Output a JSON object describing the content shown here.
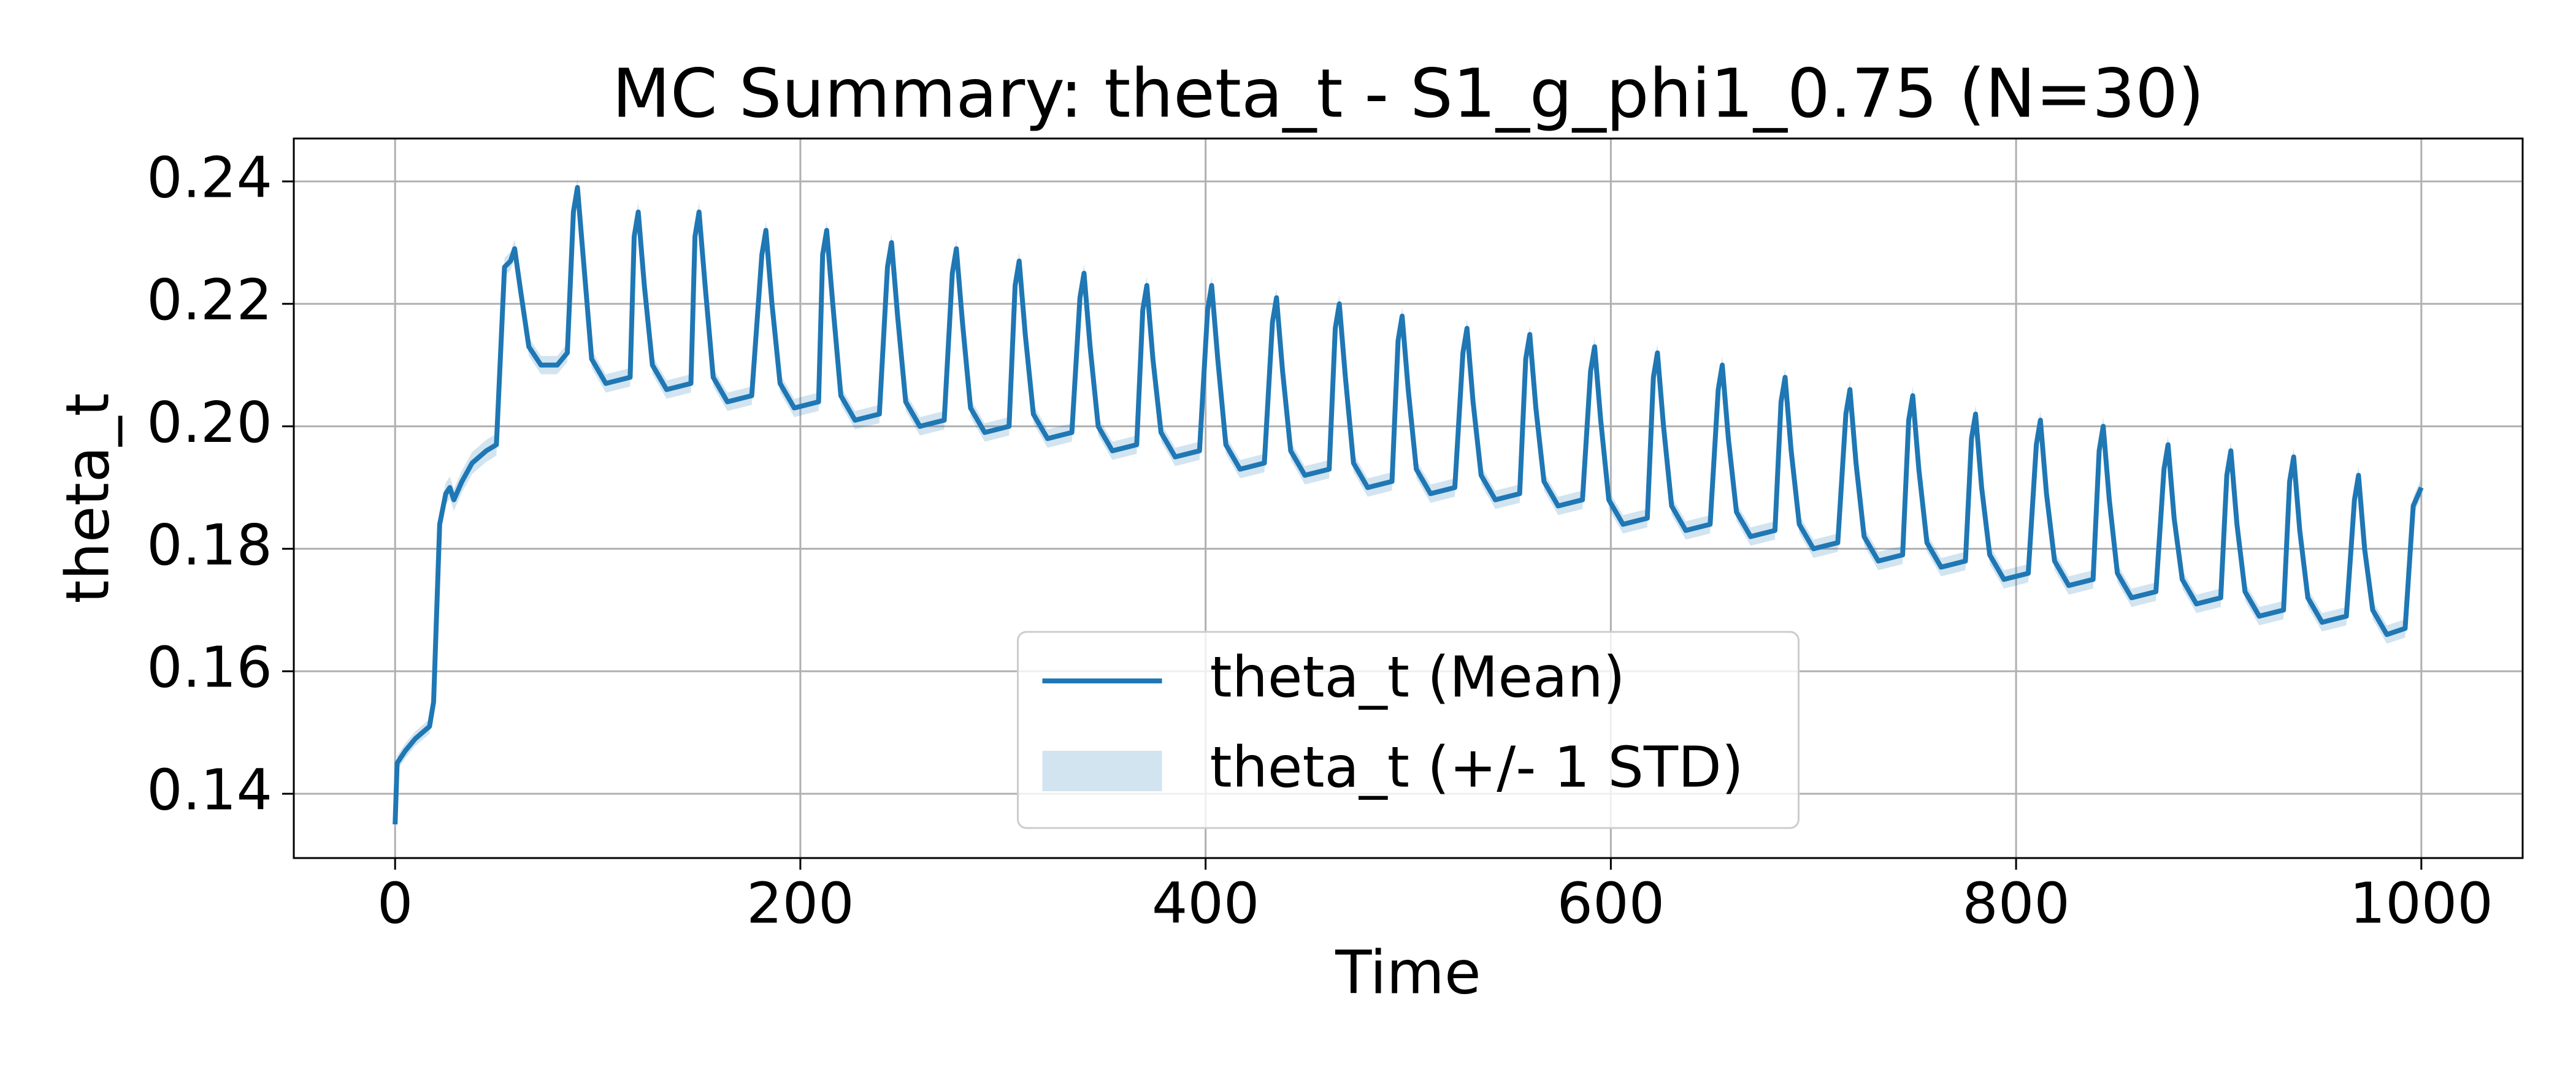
{
  "chart_data": {
    "type": "line",
    "title": "MC Summary: theta_t - S1_g_phi1_0.75 (N=30)",
    "x_label": "Time",
    "y_label": "theta_t",
    "xlim": [
      -50,
      1050
    ],
    "ylim": [
      0.1295,
      0.247
    ],
    "xticks": [
      0,
      200,
      400,
      600,
      800,
      1000
    ],
    "yticks": [
      0.14,
      0.16,
      0.18,
      {
        "value": 0.2,
        "label": "0.20"
      },
      0.22,
      0.24
    ],
    "grid": true,
    "legend_loc": "lower center",
    "x": [
      0,
      1,
      5,
      10,
      17,
      19,
      22,
      25,
      27,
      29,
      33,
      38,
      45,
      50,
      54,
      57,
      59,
      62,
      66,
      72,
      80,
      85,
      88,
      90,
      93,
      97,
      104,
      116,
      118,
      120,
      123,
      127,
      134,
      146,
      148,
      150,
      153,
      157,
      164,
      176,
      181,
      183,
      186,
      190,
      197,
      209,
      211,
      213,
      216,
      220,
      227,
      239,
      243,
      245,
      248,
      252,
      259,
      271,
      275,
      277,
      280,
      284,
      291,
      303,
      306,
      308,
      311,
      315,
      322,
      334,
      338,
      340,
      343,
      347,
      354,
      366,
      369,
      371,
      374,
      378,
      385,
      397,
      401,
      403,
      406,
      410,
      417,
      429,
      433,
      435,
      438,
      442,
      449,
      461,
      464,
      466,
      469,
      473,
      480,
      492,
      495,
      497,
      500,
      504,
      511,
      523,
      527,
      529,
      532,
      536,
      543,
      555,
      558,
      560,
      563,
      567,
      574,
      586,
      590,
      592,
      595,
      599,
      606,
      618,
      621,
      623,
      626,
      630,
      637,
      649,
      653,
      655,
      658,
      662,
      669,
      681,
      684,
      686,
      689,
      693,
      700,
      712,
      716,
      718,
      721,
      725,
      732,
      744,
      747,
      749,
      752,
      756,
      763,
      775,
      778,
      780,
      783,
      787,
      794,
      806,
      810,
      812,
      815,
      819,
      826,
      838,
      841,
      843,
      846,
      850,
      857,
      869,
      873,
      875,
      878,
      882,
      889,
      901,
      904,
      906,
      909,
      913,
      920,
      932,
      935,
      937,
      940,
      944,
      951,
      963,
      967,
      969,
      972,
      976,
      983,
      992,
      996,
      1000
    ],
    "series": [
      {
        "name": "theta_t (Mean)",
        "color": "#1f77b4",
        "kind": "line",
        "values": [
          0.135,
          0.145,
          0.147,
          0.149,
          0.151,
          0.155,
          0.184,
          0.189,
          0.19,
          0.188,
          0.191,
          0.194,
          0.196,
          0.197,
          0.226,
          0.227,
          0.229,
          0.222,
          0.213,
          0.21,
          0.21,
          0.212,
          0.235,
          0.239,
          0.227,
          0.211,
          0.207,
          0.208,
          0.231,
          0.235,
          0.223,
          0.21,
          0.206,
          0.207,
          0.231,
          0.235,
          0.223,
          0.208,
          0.204,
          0.205,
          0.228,
          0.232,
          0.22,
          0.207,
          0.203,
          0.204,
          0.228,
          0.232,
          0.22,
          0.205,
          0.201,
          0.202,
          0.226,
          0.23,
          0.218,
          0.204,
          0.2,
          0.201,
          0.225,
          0.229,
          0.217,
          0.203,
          0.199,
          0.2,
          0.223,
          0.227,
          0.215,
          0.202,
          0.198,
          0.199,
          0.221,
          0.225,
          0.213,
          0.2,
          0.196,
          0.197,
          0.219,
          0.223,
          0.211,
          0.199,
          0.195,
          0.196,
          0.219,
          0.223,
          0.211,
          0.197,
          0.193,
          0.194,
          0.217,
          0.221,
          0.209,
          0.196,
          0.192,
          0.193,
          0.216,
          0.22,
          0.208,
          0.194,
          0.19,
          0.191,
          0.214,
          0.218,
          0.206,
          0.193,
          0.189,
          0.19,
          0.212,
          0.216,
          0.204,
          0.192,
          0.188,
          0.189,
          0.211,
          0.215,
          0.203,
          0.191,
          0.187,
          0.188,
          0.209,
          0.213,
          0.201,
          0.188,
          0.184,
          0.185,
          0.208,
          0.212,
          0.2,
          0.187,
          0.183,
          0.184,
          0.206,
          0.21,
          0.198,
          0.186,
          0.182,
          0.183,
          0.204,
          0.208,
          0.196,
          0.184,
          0.18,
          0.181,
          0.202,
          0.206,
          0.194,
          0.182,
          0.178,
          0.179,
          0.201,
          0.205,
          0.193,
          0.181,
          0.177,
          0.178,
          0.198,
          0.202,
          0.19,
          0.179,
          0.175,
          0.176,
          0.197,
          0.201,
          0.189,
          0.178,
          0.174,
          0.175,
          0.196,
          0.2,
          0.188,
          0.176,
          0.172,
          0.173,
          0.193,
          0.197,
          0.185,
          0.175,
          0.171,
          0.172,
          0.192,
          0.196,
          0.184,
          0.173,
          0.169,
          0.17,
          0.191,
          0.195,
          0.183,
          0.172,
          0.168,
          0.169,
          0.188,
          0.192,
          0.18,
          0.17,
          0.166,
          0.167,
          0.187,
          0.19
        ]
      },
      {
        "name": "theta_t (+/- 1 STD)",
        "color": "#1f77b4",
        "kind": "band",
        "alpha": 0.2,
        "values": [
          0.0005,
          0.0012,
          0.0012,
          0.0012,
          0.0012,
          0.0015,
          0.0018,
          0.0018,
          0.0018,
          0.0018,
          0.0018,
          0.0018,
          0.0018,
          0.0018,
          0.0015,
          0.0015,
          0.0015,
          0.0015,
          0.0015,
          0.0015,
          0.0015,
          0.0015,
          0.0015,
          0.0015,
          0.0015,
          0.0015,
          0.0015,
          0.0015,
          0.0015,
          0.0015,
          0.0015,
          0.0015,
          0.0015,
          0.0015,
          0.0015,
          0.0015,
          0.0015,
          0.0015,
          0.0015,
          0.0015,
          0.0015,
          0.0015,
          0.0015,
          0.0015,
          0.0015,
          0.0015,
          0.0015,
          0.0015,
          0.0015,
          0.0015,
          0.0015,
          0.0015,
          0.0015,
          0.0015,
          0.0015,
          0.0015,
          0.0015,
          0.0015,
          0.0015,
          0.0015,
          0.0015,
          0.0015,
          0.0015,
          0.0015,
          0.0015,
          0.0015,
          0.0015,
          0.0015,
          0.0015,
          0.0015,
          0.0015,
          0.0015,
          0.0015,
          0.0015,
          0.0015,
          0.0015,
          0.0015,
          0.0015,
          0.0015,
          0.0015,
          0.0015,
          0.0015,
          0.0015,
          0.0015,
          0.0015,
          0.0015,
          0.0015,
          0.0015,
          0.0015,
          0.0015,
          0.0015,
          0.0015,
          0.0015,
          0.0015,
          0.0015,
          0.0015,
          0.0015,
          0.0015,
          0.0015,
          0.0015,
          0.0015,
          0.0015,
          0.0015,
          0.0015,
          0.0015,
          0.0015,
          0.0015,
          0.0015,
          0.0015,
          0.0015,
          0.0015,
          0.0015,
          0.0015,
          0.0015,
          0.0015,
          0.0015,
          0.0015,
          0.0015,
          0.0015,
          0.0015,
          0.0015,
          0.0015,
          0.0015,
          0.0015,
          0.0015,
          0.0015,
          0.0015,
          0.0015,
          0.0015,
          0.0015,
          0.0015,
          0.0015,
          0.0015,
          0.0015,
          0.0015,
          0.0015,
          0.0015,
          0.0015,
          0.0015,
          0.0015,
          0.0015,
          0.0015,
          0.0015,
          0.0015,
          0.0015,
          0.0015,
          0.0015,
          0.0015,
          0.0015,
          0.0015,
          0.0015,
          0.0015,
          0.0015,
          0.0015,
          0.0015,
          0.0015,
          0.0015,
          0.0015,
          0.0015,
          0.0015,
          0.0015,
          0.0015,
          0.0015,
          0.0015,
          0.0015,
          0.0015,
          0.0015,
          0.0015,
          0.0015,
          0.0015,
          0.0015,
          0.0015,
          0.0015,
          0.0015,
          0.0015,
          0.0015,
          0.0015,
          0.0015,
          0.0015,
          0.0015,
          0.0015,
          0.0015,
          0.0015,
          0.0015,
          0.0015,
          0.0015,
          0.0015,
          0.0015,
          0.0015,
          0.0015,
          0.0015,
          0.0015,
          0.0015,
          0.0015,
          0.0015,
          0.0015,
          0.0015,
          0.0015
        ]
      }
    ]
  }
}
